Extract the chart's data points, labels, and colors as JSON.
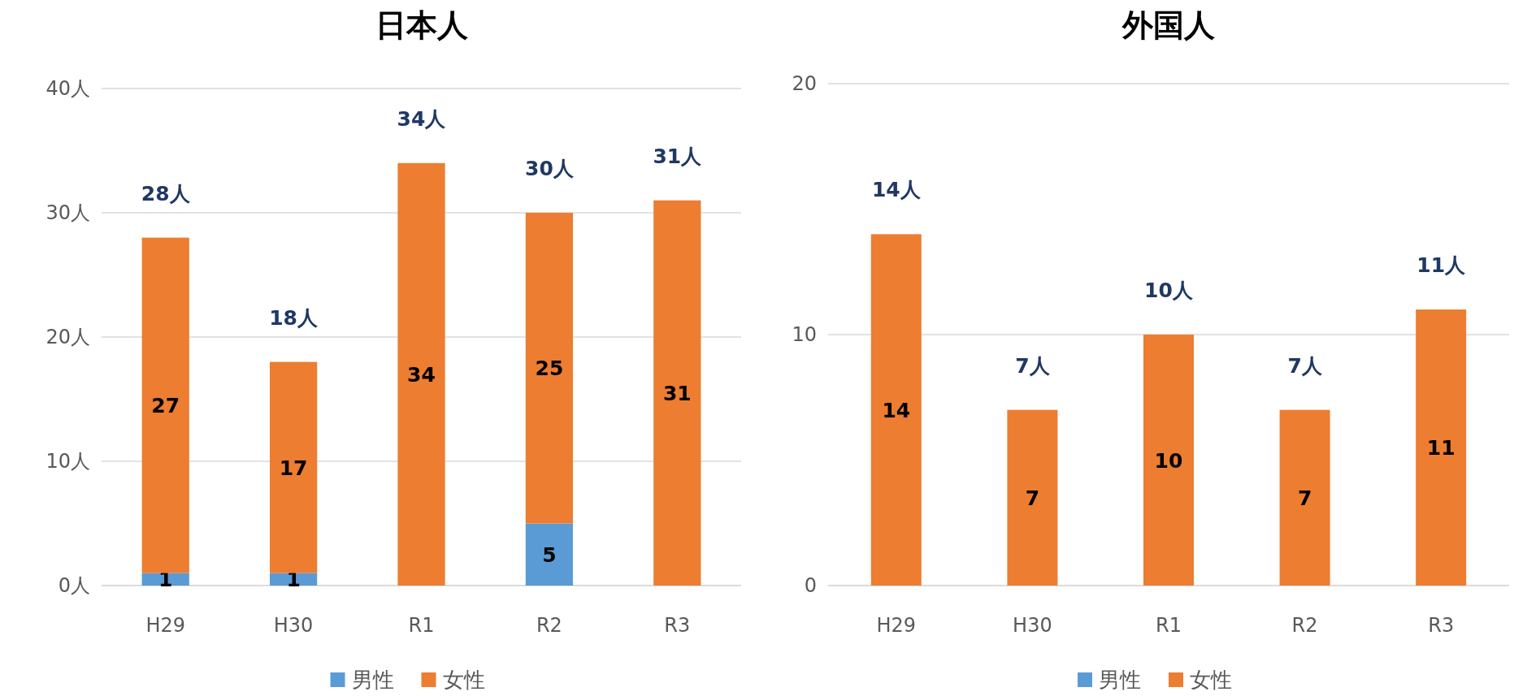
{
  "chart_data": [
    {
      "type": "bar",
      "title": "日本人",
      "categories": [
        "H29",
        "H30",
        "R1",
        "R2",
        "R3"
      ],
      "stacked": true,
      "ylim": [
        0,
        40
      ],
      "yticks": [
        {
          "value": 0,
          "label": "0人"
        },
        {
          "value": 10,
          "label": "10人"
        },
        {
          "value": 20,
          "label": "20人"
        },
        {
          "value": 30,
          "label": "30人"
        },
        {
          "value": 40,
          "label": "40人"
        }
      ],
      "grid": "y",
      "legend": "bottom",
      "series": [
        {
          "name": "男性",
          "color": "#5b9bd5",
          "values": [
            1,
            1,
            0,
            5,
            0
          ],
          "value_labels": [
            "1",
            "1",
            null,
            "5",
            null
          ]
        },
        {
          "name": "女性",
          "color": "#ed7d31",
          "values": [
            27,
            17,
            34,
            25,
            31
          ],
          "value_labels": [
            "27",
            "17",
            "34",
            "25",
            "31"
          ]
        }
      ],
      "totals": [
        "28人",
        "18人",
        "34人",
        "30人",
        "31人"
      ]
    },
    {
      "type": "bar",
      "title": "外国人",
      "categories": [
        "H29",
        "H30",
        "R1",
        "R2",
        "R3"
      ],
      "stacked": true,
      "ylim": [
        0,
        20
      ],
      "yticks": [
        0,
        10,
        20
      ],
      "grid": "y",
      "legend": "bottom",
      "series": [
        {
          "name": "男性",
          "color": "#5b9bd5",
          "values": [
            0,
            0,
            0,
            0,
            0
          ],
          "value_labels": [
            null,
            null,
            null,
            null,
            null
          ]
        },
        {
          "name": "女性",
          "color": "#ed7d31",
          "values": [
            14,
            7,
            10,
            7,
            11
          ],
          "value_labels": [
            "14",
            "7",
            "10",
            "7",
            "11"
          ]
        }
      ],
      "totals": [
        "14人",
        "7人",
        "10人",
        "7人",
        "11人"
      ]
    }
  ]
}
